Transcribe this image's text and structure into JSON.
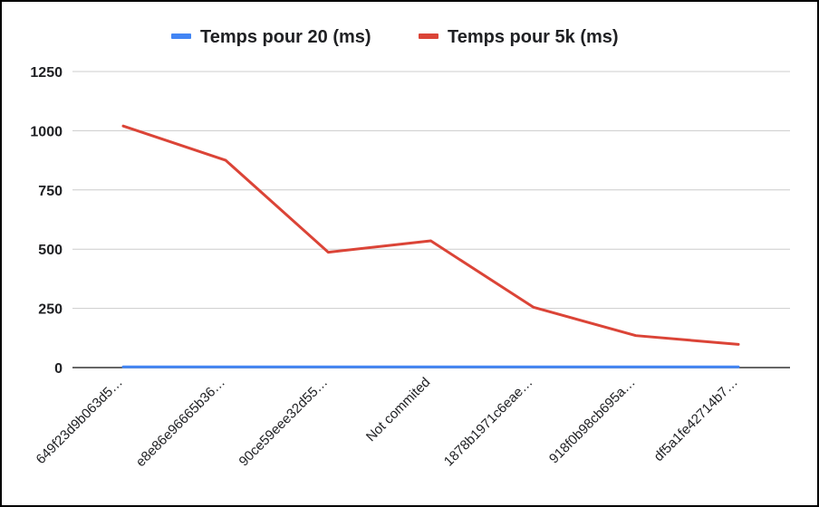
{
  "chart_data": {
    "type": "line",
    "categories": [
      "649f23d9b063d5…",
      "e8e86e96665b36…",
      "90ce59eee32d55…",
      "Not commited",
      "1878b1971c6eae…",
      "918f0b98cb695a…",
      "df5a1fe42714b7…"
    ],
    "series": [
      {
        "name": "Temps pour 20 (ms)",
        "color": "#4285f4",
        "values": [
          3,
          3,
          3,
          3,
          3,
          3,
          3
        ]
      },
      {
        "name": "Temps pour 5k (ms)",
        "color": "#db4437",
        "values": [
          1020,
          875,
          487,
          535,
          255,
          135,
          98
        ]
      }
    ],
    "yticks": [
      "0",
      "250",
      "500",
      "750",
      "1000",
      "1250"
    ],
    "ylim": [
      0,
      1250
    ],
    "grid": true,
    "legend_position": "top"
  }
}
